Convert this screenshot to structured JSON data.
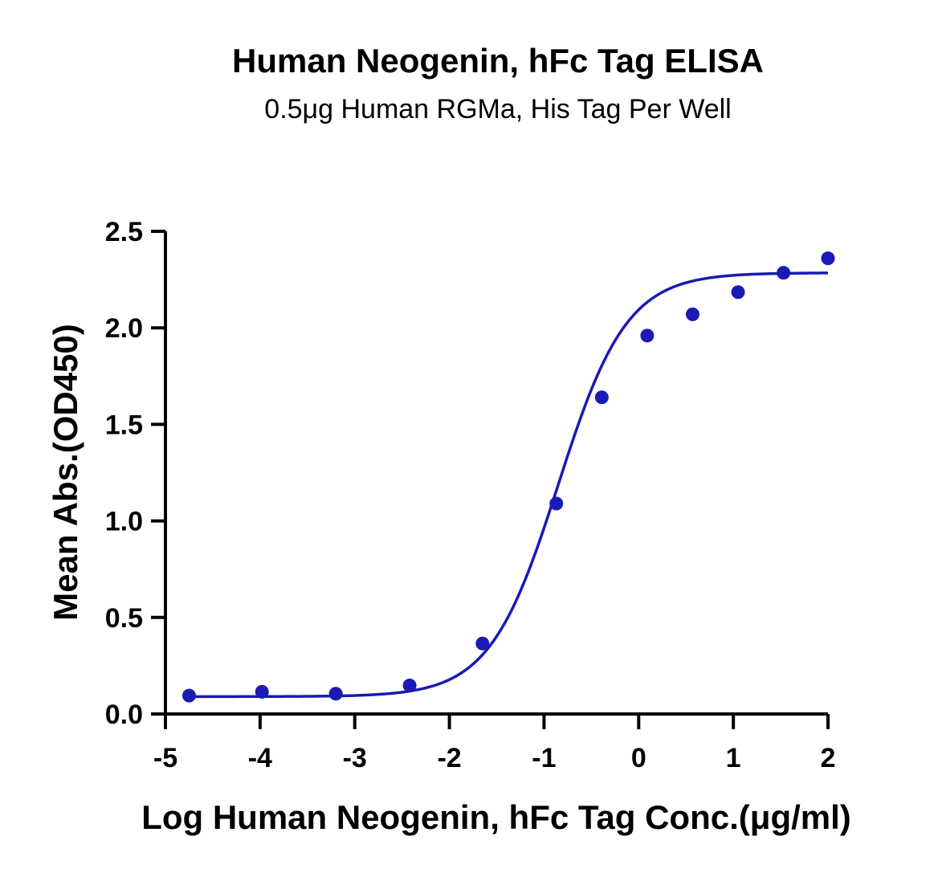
{
  "chart_data": {
    "type": "scatter",
    "title": "Human Neogenin, hFc Tag ELISA",
    "subtitle": "0.5μg Human RGMa, His Tag Per Well",
    "xlabel": "Log Human Neogenin, hFc Tag Conc.(μg/ml)",
    "ylabel": "Mean Abs.(OD450)",
    "xlim": [
      -5,
      2
    ],
    "ylim": [
      0,
      2.5
    ],
    "x_ticks": [
      "-5",
      "-4",
      "-3",
      "-2",
      "-1",
      "0",
      "1",
      "2"
    ],
    "y_ticks": [
      "0.0",
      "0.5",
      "1.0",
      "1.5",
      "2.0",
      "2.5"
    ],
    "grid": false,
    "legend": "none",
    "colors": {
      "series": "#1a1ab4",
      "axis": "#000000"
    },
    "series": [
      {
        "points": [
          {
            "x": -4.75,
            "y": 0.095
          },
          {
            "x": -3.98,
            "y": 0.115
          },
          {
            "x": -3.2,
            "y": 0.105
          },
          {
            "x": -2.42,
            "y": 0.148
          },
          {
            "x": -1.65,
            "y": 0.365
          },
          {
            "x": -0.87,
            "y": 1.09
          },
          {
            "x": -0.39,
            "y": 1.64
          },
          {
            "x": 0.09,
            "y": 1.96
          },
          {
            "x": 0.57,
            "y": 2.07
          },
          {
            "x": 1.05,
            "y": 2.185
          },
          {
            "x": 1.53,
            "y": 2.285
          },
          {
            "x": 2.0,
            "y": 2.36
          }
        ],
        "fit": {
          "model": "4PL",
          "bottom": 0.09,
          "top": 2.285,
          "logEC50": -0.85,
          "hill": 1.2,
          "x_range": [
            -4.75,
            2.0
          ]
        }
      }
    ]
  }
}
